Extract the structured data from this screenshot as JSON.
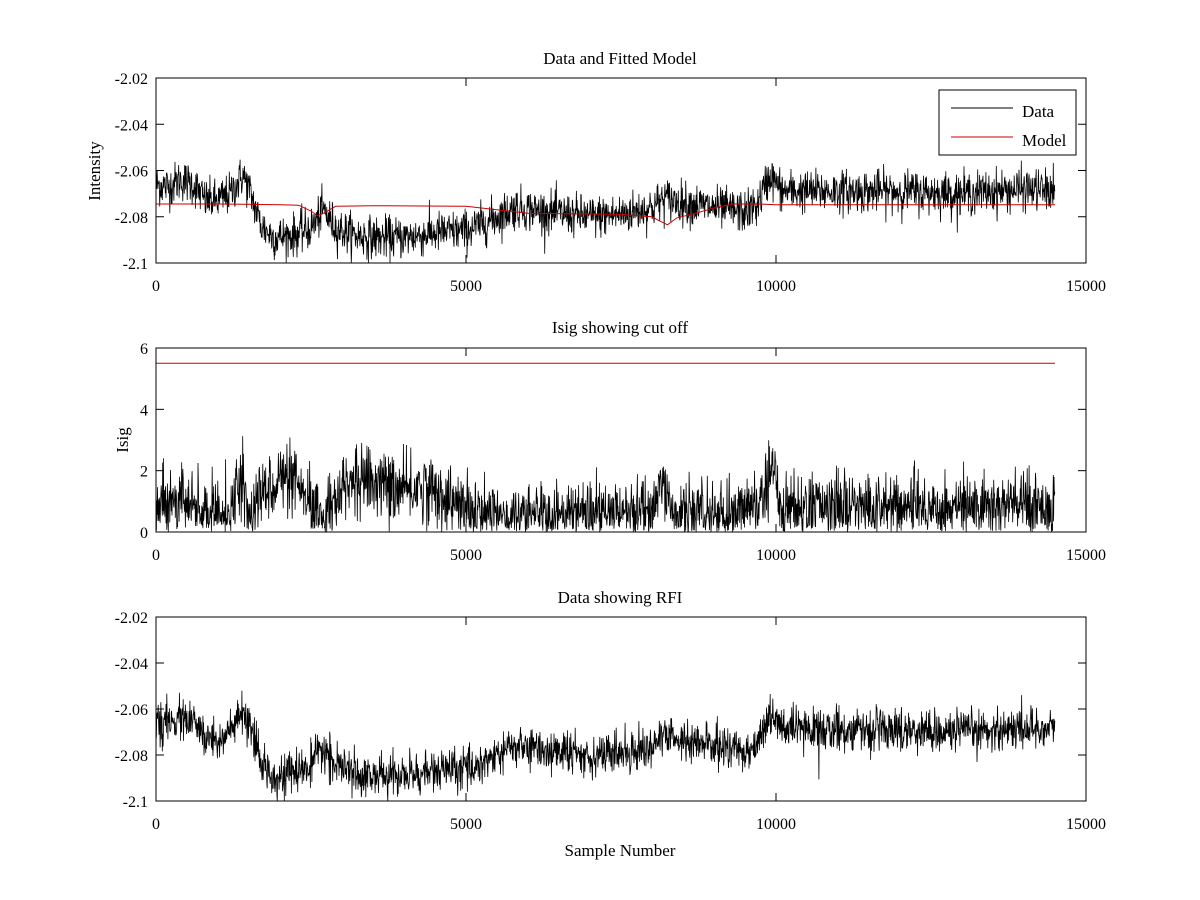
{
  "chart_data": [
    {
      "type": "line",
      "title": "Data and Fitted Model",
      "xlabel": "",
      "ylabel": "Intensity",
      "xlim": [
        0,
        15000
      ],
      "ylim": [
        -2.1,
        -2.02
      ],
      "xticks": [
        0,
        5000,
        10000,
        15000
      ],
      "xtick_labels": [
        "0",
        "5000",
        "10000",
        "15000"
      ],
      "yticks": [
        -2.02,
        -2.04,
        -2.06,
        -2.08,
        -2.1
      ],
      "ytick_labels": [
        "-2.02",
        "-2.04",
        "-2.06",
        "-2.08",
        "-2.1"
      ],
      "grid": false,
      "legend": "top-right",
      "series": [
        {
          "name": "Data",
          "color": "#000000",
          "style": "noisy",
          "x": [
            0,
            200,
            400,
            600,
            800,
            1000,
            1200,
            1400,
            1500,
            1700,
            1900,
            2200,
            2500,
            2700,
            2900,
            3200,
            3500,
            4000,
            4500,
            5000,
            5200,
            5500,
            5800,
            6300,
            7000,
            7500,
            8000,
            8200,
            8500,
            9000,
            9500,
            9700,
            9900,
            10100,
            10500,
            11000,
            12000,
            13000,
            14000,
            14500
          ],
          "values": [
            -2.066,
            -2.067,
            -2.064,
            -2.066,
            -2.073,
            -2.073,
            -2.07,
            -2.062,
            -2.068,
            -2.084,
            -2.089,
            -2.088,
            -2.085,
            -2.077,
            -2.085,
            -2.088,
            -2.089,
            -2.089,
            -2.087,
            -2.086,
            -2.084,
            -2.08,
            -2.076,
            -2.078,
            -2.08,
            -2.079,
            -2.076,
            -2.072,
            -2.074,
            -2.076,
            -2.078,
            -2.075,
            -2.062,
            -2.069,
            -2.069,
            -2.069,
            -2.069,
            -2.07,
            -2.068,
            -2.069
          ],
          "noise": 0.0045
        },
        {
          "name": "Model",
          "color": "#cc0000",
          "style": "smooth",
          "x": [
            0,
            1000,
            2000,
            2300,
            2500,
            2600,
            2700,
            2900,
            3500,
            5000,
            6000,
            7000,
            7500,
            8000,
            8100,
            8250,
            8400,
            8700,
            9000,
            9300,
            9700,
            10000,
            11000,
            12000,
            13000,
            14500
          ],
          "values": [
            -2.0745,
            -2.0745,
            -2.0748,
            -2.075,
            -2.0775,
            -2.0795,
            -2.0785,
            -2.0755,
            -2.0752,
            -2.0755,
            -2.0785,
            -2.0788,
            -2.079,
            -2.08,
            -2.0815,
            -2.0835,
            -2.0805,
            -2.0785,
            -2.0762,
            -2.0745,
            -2.0745,
            -2.0748,
            -2.0748,
            -2.0748,
            -2.0748,
            -2.0748
          ]
        }
      ]
    },
    {
      "type": "line",
      "title": "Isig showing cut off",
      "xlabel": "",
      "ylabel": "Isig",
      "xlim": [
        0,
        15000
      ],
      "ylim": [
        0,
        6
      ],
      "xticks": [
        0,
        5000,
        10000,
        15000
      ],
      "xtick_labels": [
        "0",
        "5000",
        "10000",
        "15000"
      ],
      "yticks": [
        0,
        2,
        4,
        6
      ],
      "ytick_labels": [
        "0",
        "2",
        "4",
        "6"
      ],
      "grid": false,
      "series": [
        {
          "color": "#000000",
          "style": "isig",
          "x": [
            0,
            300,
            600,
            900,
            1200,
            1400,
            1500,
            1700,
            2000,
            2300,
            2500,
            2700,
            2900,
            3200,
            3600,
            4000,
            4300,
            4600,
            5000,
            5500,
            6000,
            7000,
            7700,
            8000,
            8200,
            8300,
            8600,
            9000,
            9500,
            9800,
            9900,
            10100,
            10500,
            11000,
            12000,
            13000,
            14000,
            14500
          ],
          "values": [
            0.9,
            1.1,
            0.7,
            0.5,
            0.5,
            1.7,
            0.3,
            1.2,
            1.8,
            1.4,
            0.7,
            0.4,
            1.2,
            1.7,
            1.6,
            1.3,
            1.5,
            1.2,
            0.7,
            0.5,
            0.5,
            0.5,
            0.6,
            0.8,
            1.7,
            0.5,
            0.6,
            0.5,
            0.6,
            1.0,
            2.3,
            0.8,
            0.8,
            0.8,
            0.8,
            0.8,
            0.9,
            0.9
          ],
          "noise": 0.55
        },
        {
          "color": "#cc0000",
          "style": "smooth",
          "x": [
            0,
            14500
          ],
          "values": [
            5.5,
            5.5
          ]
        }
      ]
    },
    {
      "type": "line",
      "title": "Data showing RFI",
      "xlabel": "Sample Number",
      "ylabel": "",
      "xlim": [
        0,
        15000
      ],
      "ylim": [
        -2.1,
        -2.02
      ],
      "xticks": [
        0,
        5000,
        10000,
        15000
      ],
      "xtick_labels": [
        "0",
        "5000",
        "10000",
        "15000"
      ],
      "yticks": [
        -2.02,
        -2.04,
        -2.06,
        -2.08,
        -2.1
      ],
      "ytick_labels": [
        "-2.02",
        "-2.04",
        "-2.06",
        "-2.08",
        "-2.1"
      ],
      "grid": false,
      "series": [
        {
          "color": "#000000",
          "style": "noisy",
          "x": [
            0,
            200,
            400,
            600,
            800,
            1000,
            1200,
            1400,
            1500,
            1700,
            1900,
            2200,
            2500,
            2700,
            2900,
            3200,
            3500,
            4000,
            4500,
            5000,
            5200,
            5500,
            5800,
            6300,
            7000,
            7500,
            8000,
            8200,
            8500,
            9000,
            9500,
            9700,
            9900,
            10100,
            10500,
            11000,
            12000,
            13000,
            14000,
            14500
          ],
          "values": [
            -2.066,
            -2.067,
            -2.064,
            -2.066,
            -2.073,
            -2.073,
            -2.07,
            -2.062,
            -2.068,
            -2.084,
            -2.089,
            -2.088,
            -2.085,
            -2.077,
            -2.085,
            -2.088,
            -2.089,
            -2.089,
            -2.087,
            -2.086,
            -2.084,
            -2.08,
            -2.076,
            -2.078,
            -2.08,
            -2.079,
            -2.076,
            -2.072,
            -2.074,
            -2.076,
            -2.078,
            -2.075,
            -2.062,
            -2.069,
            -2.069,
            -2.069,
            -2.069,
            -2.07,
            -2.068,
            -2.069
          ],
          "noise": 0.0045
        }
      ]
    }
  ]
}
